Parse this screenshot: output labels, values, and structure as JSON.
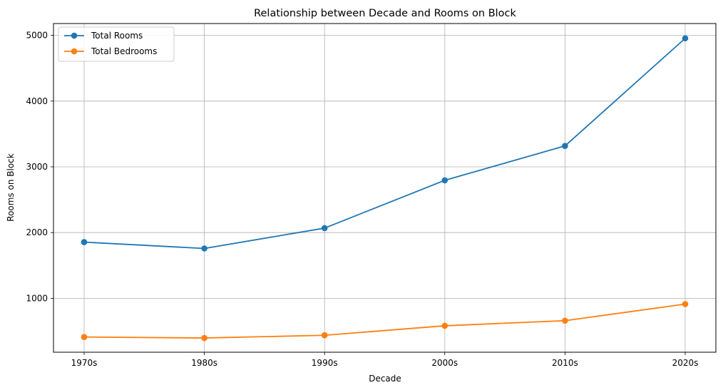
{
  "chart_data": {
    "type": "line",
    "title": "Relationship between Decade and Rooms on Block",
    "xlabel": "Decade",
    "ylabel": "Rooms on Block",
    "categories": [
      "1970s",
      "1980s",
      "1990s",
      "2000s",
      "2010s",
      "2020s"
    ],
    "ylim": [
      180,
      5180
    ],
    "yticks": [
      1000,
      2000,
      3000,
      4000,
      5000
    ],
    "grid": true,
    "legend_position": "top-left",
    "series": [
      {
        "name": "Total Rooms",
        "color": "#1f77b4",
        "values": [
          1855,
          1758,
          2068,
          2795,
          3318,
          4955
        ]
      },
      {
        "name": "Total Bedrooms",
        "color": "#ff7f0e",
        "values": [
          411,
          396,
          438,
          582,
          660,
          912
        ]
      }
    ]
  }
}
